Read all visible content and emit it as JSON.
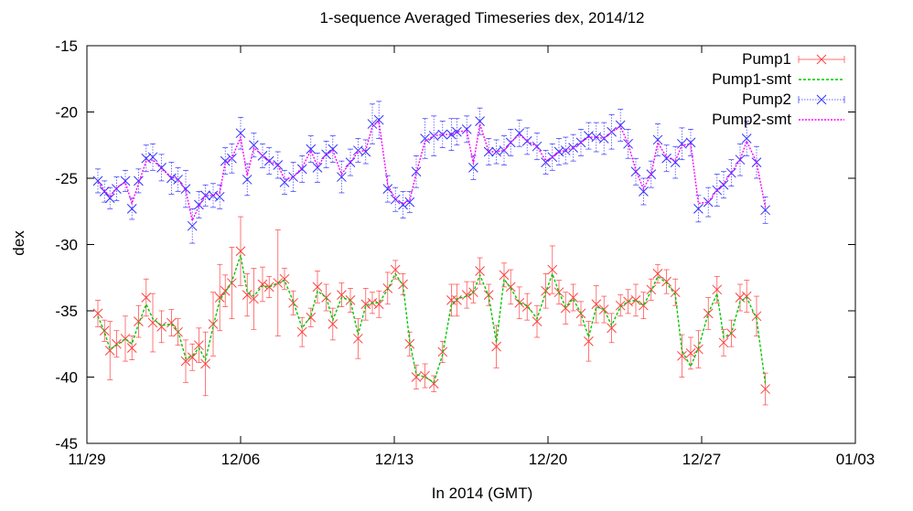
{
  "chart_data": {
    "type": "line",
    "title": "1-sequence Averaged Timeseries dex, 2014/12",
    "xlabel": "In 2014 (GMT)",
    "ylabel": "dex",
    "x_range": [
      "11/29",
      "01/03"
    ],
    "ylim": [
      -45,
      -15
    ],
    "x_ticks": [
      "11/29",
      "12/06",
      "12/13",
      "12/20",
      "12/27",
      "01/03"
    ],
    "y_ticks": [
      "-15",
      "-20",
      "-25",
      "-30",
      "-35",
      "-40",
      "-45"
    ],
    "grid": false,
    "legend_position": "top-right",
    "x_day_offsets": [
      0.5,
      0.8,
      1.05,
      1.35,
      1.75,
      2.05,
      2.35,
      2.7,
      3.0,
      3.4,
      3.85,
      4.15,
      4.5,
      4.8,
      5.1,
      5.4,
      5.75,
      6.05,
      6.3,
      6.6,
      7.0,
      7.3,
      7.6,
      8.0,
      8.3,
      8.7,
      9.0,
      9.4,
      9.8,
      10.2,
      10.5,
      10.9,
      11.2,
      11.6,
      12.0,
      12.35,
      12.7,
      13.0,
      13.3,
      13.7,
      14.05,
      14.4,
      14.7,
      15.0,
      15.4,
      15.8,
      16.2,
      16.6,
      16.85,
      17.3,
      17.6,
      17.9,
      18.3,
      18.65,
      19.0,
      19.3,
      19.7,
      20.05,
      20.5,
      20.9,
      21.2,
      21.5,
      21.8,
      22.15,
      22.5,
      22.85,
      23.2,
      23.55,
      23.9,
      24.3,
      24.65,
      25.0,
      25.35,
      25.7,
      26.0,
      26.4,
      26.8,
      27.1,
      27.5,
      27.85,
      28.3,
      28.7,
      29.0,
      29.35,
      29.75,
      30.05,
      30.5,
      30.9
    ],
    "series": [
      {
        "name": "Pump1",
        "style": "points+errorbars",
        "color": "#ff4040",
        "marker": "x",
        "values": [
          -35.2,
          -36.5,
          -38.0,
          -37.5,
          -37.1,
          -37.8,
          -35.8,
          -34.0,
          -35.9,
          -36.2,
          -35.9,
          -36.6,
          -38.8,
          -38.5,
          -37.6,
          -39.0,
          -36.0,
          -34.0,
          -33.5,
          -32.9,
          -30.5,
          -33.8,
          -34.1,
          -33.0,
          -33.2,
          -32.9,
          -32.6,
          -34.4,
          -36.6,
          -35.5,
          -33.2,
          -34.0,
          -36.0,
          -33.8,
          -34.2,
          -37.1,
          -34.5,
          -34.4,
          -34.5,
          -33.3,
          -31.9,
          -33.0,
          -37.5,
          -40.0,
          -39.9,
          -40.5,
          -38.1,
          -34.2,
          -34.2,
          -33.8,
          -33.6,
          -32.0,
          -33.8,
          -37.7,
          -32.3,
          -33.2,
          -34.4,
          -34.7,
          -35.8,
          -33.5,
          -31.9,
          -33.6,
          -34.8,
          -34.0,
          -35.2,
          -37.3,
          -34.5,
          -34.9,
          -36.3,
          -34.6,
          -34.3,
          -34.2,
          -34.6,
          -33.4,
          -32.2,
          -32.8,
          -33.6,
          -38.4,
          -38.2,
          -37.9,
          -35.2,
          -33.4,
          -37.4,
          -36.7,
          -34.0,
          -33.9,
          -35.4,
          -40.9
        ],
        "errors": [
          1.0,
          0.8,
          2.2,
          1.0,
          1.7,
          0.9,
          1.2,
          1.4,
          2.2,
          1.2,
          1.0,
          1.0,
          1.6,
          1.0,
          1.3,
          2.4,
          2.4,
          2.5,
          1.2,
          2.7,
          2.6,
          1.6,
          2.3,
          1.3,
          0.8,
          4.0,
          0.8,
          0.9,
          1.1,
          0.7,
          1.2,
          1.0,
          1.2,
          0.9,
          0.9,
          1.5,
          1.2,
          0.8,
          1.0,
          1.2,
          0.7,
          0.8,
          0.9,
          0.9,
          0.9,
          0.6,
          0.8,
          1.2,
          1.2,
          1.0,
          0.8,
          1.0,
          0.8,
          1.6,
          0.9,
          1.3,
          1.2,
          1.0,
          1.2,
          1.3,
          1.8,
          0.9,
          1.2,
          1.0,
          0.9,
          1.5,
          1.4,
          1.0,
          1.1,
          0.8,
          0.9,
          1.2,
          1.0,
          0.8,
          0.7,
          0.9,
          1.0,
          1.6,
          1.2,
          1.4,
          1.2,
          1.0,
          1.0,
          1.0,
          1.0,
          1.2,
          1.5,
          1.2
        ]
      },
      {
        "name": "Pump1-smt",
        "style": "line",
        "color": "#00c800",
        "dash": "3,2",
        "values": [
          -35.4,
          -36.6,
          -37.9,
          -37.6,
          -37.1,
          -37.5,
          -36.0,
          -34.5,
          -35.6,
          -36.1,
          -36.0,
          -36.5,
          -38.6,
          -38.4,
          -37.8,
          -38.7,
          -36.2,
          -34.2,
          -33.6,
          -32.8,
          -30.8,
          -33.6,
          -33.9,
          -33.1,
          -33.2,
          -32.9,
          -32.7,
          -34.3,
          -36.3,
          -35.4,
          -33.5,
          -34.0,
          -35.7,
          -34.0,
          -34.2,
          -36.8,
          -34.6,
          -34.4,
          -34.4,
          -33.4,
          -32.2,
          -33.1,
          -37.3,
          -39.8,
          -40.0,
          -40.4,
          -38.3,
          -34.5,
          -34.1,
          -33.9,
          -33.6,
          -32.3,
          -33.9,
          -37.4,
          -32.6,
          -33.3,
          -34.4,
          -34.6,
          -35.6,
          -33.6,
          -32.2,
          -33.6,
          -34.7,
          -34.1,
          -35.2,
          -37.0,
          -34.7,
          -34.9,
          -36.1,
          -34.7,
          -34.3,
          -34.2,
          -34.6,
          -33.5,
          -32.4,
          -32.9,
          -33.8,
          -38.0,
          -39.2,
          -37.8,
          -35.2,
          -33.7,
          -37.0,
          -36.7,
          -34.3,
          -34.0,
          -35.6,
          -40.5
        ]
      },
      {
        "name": "Pump2",
        "style": "points+errorbars",
        "color": "#3030ff",
        "marker": "x",
        "values": [
          -25.2,
          -26.0,
          -26.5,
          -25.8,
          -25.2,
          -27.3,
          -25.2,
          -23.5,
          -23.4,
          -24.2,
          -25.0,
          -25.1,
          -25.8,
          -28.6,
          -27.0,
          -26.3,
          -26.3,
          -26.4,
          -23.7,
          -23.5,
          -21.6,
          -25.1,
          -22.5,
          -23.3,
          -23.7,
          -24.0,
          -25.3,
          -24.9,
          -24.3,
          -22.8,
          -24.2,
          -23.2,
          -22.8,
          -24.9,
          -23.8,
          -22.9,
          -23.0,
          -20.9,
          -20.6,
          -25.8,
          -26.6,
          -27.0,
          -26.8,
          -24.5,
          -22.0,
          -21.8,
          -21.7,
          -21.7,
          -21.5,
          -21.3,
          -24.2,
          -20.7,
          -23.0,
          -23.0,
          -22.9,
          -22.3,
          -21.6,
          -22.2,
          -22.6,
          -23.8,
          -23.4,
          -23.0,
          -22.9,
          -22.7,
          -22.3,
          -21.8,
          -21.9,
          -22.0,
          -21.5,
          -21.0,
          -22.4,
          -24.5,
          -26.0,
          -24.7,
          -22.1,
          -23.5,
          -23.8,
          -22.4,
          -22.3,
          -27.3,
          -26.8,
          -25.9,
          -25.5,
          -24.6,
          -23.6,
          -22.0,
          -23.8,
          -27.4
        ],
        "errors": [
          0.9,
          0.8,
          0.8,
          0.9,
          0.8,
          0.8,
          0.9,
          1.0,
          1.0,
          1.0,
          1.2,
          0.9,
          1.4,
          1.3,
          1.0,
          0.8,
          0.9,
          0.9,
          1.0,
          1.1,
          1.2,
          1.2,
          0.9,
          0.9,
          1.0,
          1.0,
          0.9,
          1.1,
          1.0,
          1.0,
          1.1,
          1.0,
          1.0,
          1.2,
          1.0,
          0.9,
          0.9,
          1.5,
          1.4,
          1.0,
          0.9,
          1.0,
          0.8,
          1.2,
          1.5,
          1.5,
          1.0,
          1.2,
          1.0,
          1.0,
          0.9,
          1.0,
          1.0,
          0.9,
          1.1,
          1.0,
          1.0,
          1.0,
          1.0,
          0.9,
          1.0,
          1.0,
          1.0,
          1.0,
          1.0,
          1.0,
          1.1,
          1.2,
          1.3,
          1.2,
          1.1,
          1.0,
          1.0,
          1.0,
          1.2,
          1.0,
          1.2,
          1.2,
          1.0,
          1.0,
          1.1,
          1.2,
          1.0,
          1.0,
          1.2,
          1.3,
          1.2,
          1.0
        ]
      },
      {
        "name": "Pump2-smt",
        "style": "line",
        "color": "#ff00ff",
        "dash": "2,1.5",
        "values": [
          -25.3,
          -25.9,
          -26.4,
          -25.7,
          -25.3,
          -26.9,
          -25.4,
          -23.7,
          -23.6,
          -24.3,
          -24.9,
          -25.1,
          -25.9,
          -28.2,
          -27.1,
          -26.3,
          -26.3,
          -26.1,
          -23.8,
          -23.5,
          -21.9,
          -24.8,
          -22.7,
          -23.3,
          -23.7,
          -24.0,
          -25.1,
          -24.9,
          -24.2,
          -22.9,
          -24.1,
          -23.2,
          -22.9,
          -24.7,
          -23.8,
          -23.0,
          -22.9,
          -21.1,
          -20.7,
          -25.5,
          -26.6,
          -26.9,
          -26.7,
          -24.6,
          -22.2,
          -21.8,
          -21.7,
          -21.7,
          -21.5,
          -21.4,
          -23.9,
          -20.9,
          -23.0,
          -23.0,
          -22.9,
          -22.3,
          -21.7,
          -22.2,
          -22.6,
          -23.7,
          -23.4,
          -23.0,
          -22.9,
          -22.7,
          -22.3,
          -21.9,
          -21.9,
          -22.0,
          -21.5,
          -21.1,
          -22.4,
          -24.4,
          -25.8,
          -24.7,
          -22.3,
          -23.4,
          -23.7,
          -22.5,
          -22.4,
          -26.9,
          -26.8,
          -25.9,
          -25.4,
          -24.6,
          -23.6,
          -22.2,
          -23.8,
          -27.2
        ]
      }
    ]
  }
}
